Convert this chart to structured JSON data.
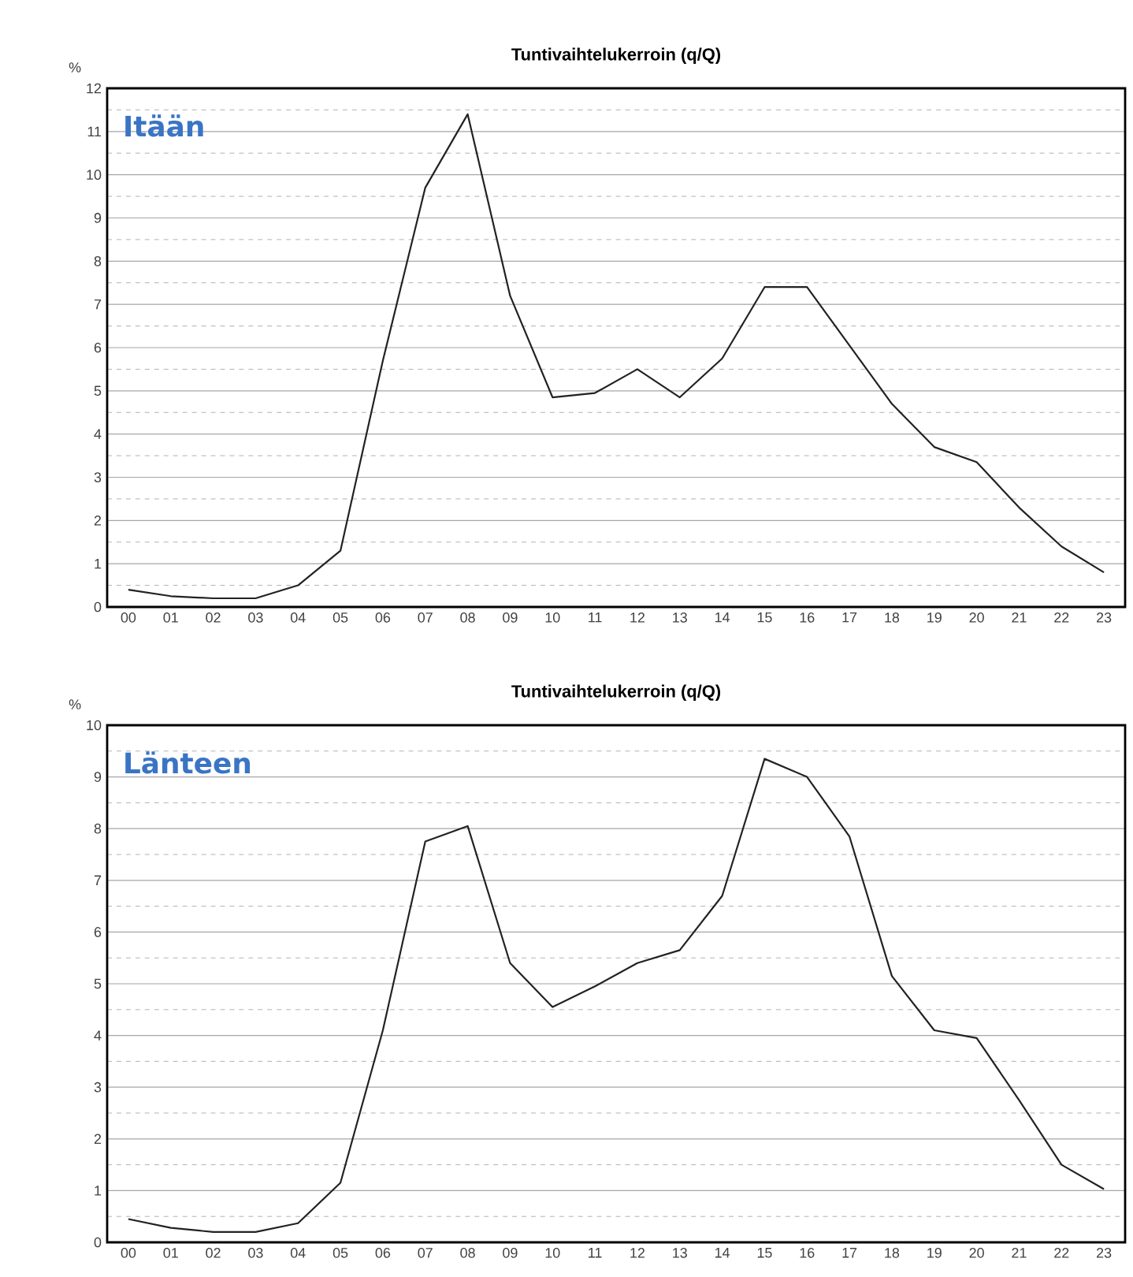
{
  "chart_data": [
    {
      "type": "line",
      "title": "Tuntivaihtelukerroin (q/Q)",
      "ylabel": "%",
      "annotations": [
        "Itään"
      ],
      "categories": [
        "00",
        "01",
        "02",
        "03",
        "04",
        "05",
        "06",
        "07",
        "08",
        "09",
        "10",
        "11",
        "12",
        "13",
        "14",
        "15",
        "16",
        "17",
        "18",
        "19",
        "20",
        "21",
        "22",
        "23"
      ],
      "values": [
        0.4,
        0.25,
        0.2,
        0.2,
        0.5,
        1.3,
        5.7,
        9.7,
        11.4,
        7.2,
        4.85,
        4.95,
        5.5,
        4.85,
        5.75,
        7.4,
        7.4,
        6.05,
        4.7,
        3.7,
        3.35,
        2.3,
        1.4,
        0.8
      ],
      "color": "#222222",
      "ylim": [
        0,
        12
      ],
      "yticks": [
        0,
        1,
        2,
        3,
        4,
        5,
        6,
        7,
        8,
        9,
        10,
        11,
        12
      ],
      "grid": "y"
    },
    {
      "type": "line",
      "title": "Tuntivaihtelukerroin (q/Q)",
      "ylabel": "%",
      "annotations": [
        "Länteen"
      ],
      "categories": [
        "00",
        "01",
        "02",
        "03",
        "04",
        "05",
        "06",
        "07",
        "08",
        "09",
        "10",
        "11",
        "12",
        "13",
        "14",
        "15",
        "16",
        "17",
        "18",
        "19",
        "20",
        "21",
        "22",
        "23"
      ],
      "values": [
        0.45,
        0.28,
        0.2,
        0.2,
        0.37,
        1.15,
        4.1,
        7.75,
        8.05,
        5.4,
        4.55,
        4.95,
        5.4,
        5.65,
        6.7,
        9.35,
        9.0,
        7.85,
        5.15,
        4.1,
        3.95,
        2.75,
        1.5,
        1.03
      ],
      "color": "#222222",
      "ylim": [
        0,
        10
      ],
      "yticks": [
        0,
        1,
        2,
        3,
        4,
        5,
        6,
        7,
        8,
        9,
        10
      ],
      "grid": "y"
    }
  ]
}
